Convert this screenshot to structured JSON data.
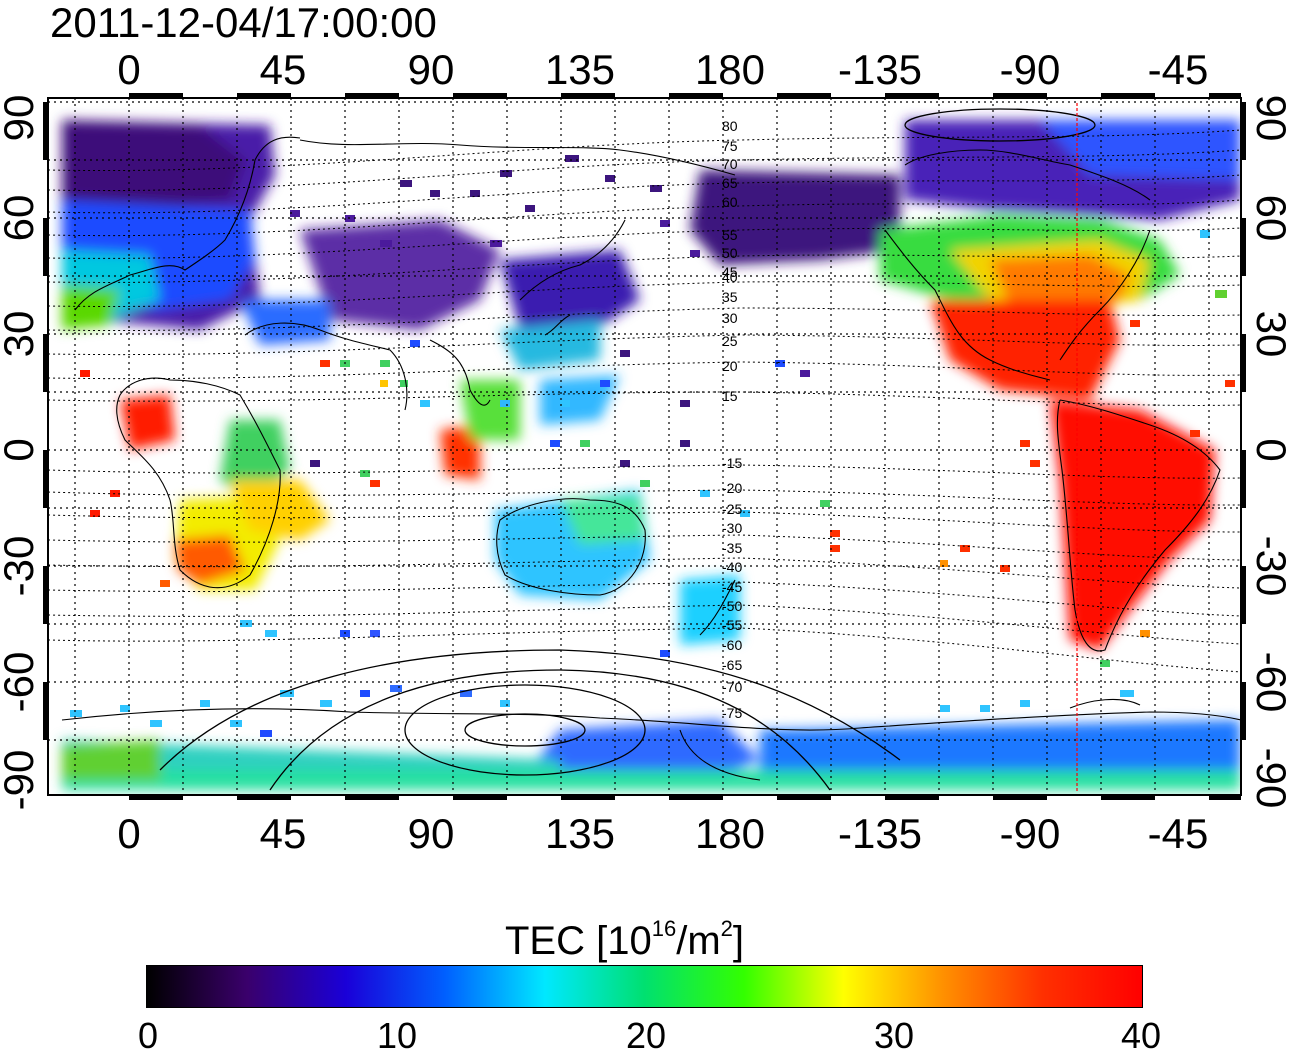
{
  "title": "2011-12-04/17:00:00",
  "map": {
    "lon_ticks": [
      "0",
      "45",
      "90",
      "135",
      "180",
      "-135",
      "-90",
      "-45"
    ],
    "lat_ticks": [
      "90",
      "60",
      "30",
      "0",
      "-30",
      "-60",
      "-90"
    ],
    "contour_labels_north": [
      "80",
      "75",
      "70",
      "65",
      "60",
      "55",
      "50",
      "45",
      "40",
      "35",
      "30",
      "25",
      "20",
      "15"
    ],
    "contour_labels_south": [
      "-15",
      "-20",
      "-25",
      "-30",
      "-35",
      "-40",
      "-45",
      "-50",
      "-55",
      "-60",
      "-65",
      "-70",
      "-75"
    ],
    "terminator_color": "#ff0000",
    "grid_style": "dotted"
  },
  "colorbar": {
    "label_prefix": "TEC  [10",
    "label_exp1": "16",
    "label_mid": "/m",
    "label_exp2": "2",
    "label_suffix": "]",
    "ticks": [
      "0",
      "10",
      "20",
      "30",
      "40"
    ],
    "min": 0,
    "max": 40,
    "colors": [
      "#000000",
      "#3a006b",
      "#1a00d8",
      "#0060ff",
      "#00e8ff",
      "#00e070",
      "#33ff00",
      "#ffff00",
      "#ff9000",
      "#ff3000",
      "#ff0000"
    ]
  }
}
